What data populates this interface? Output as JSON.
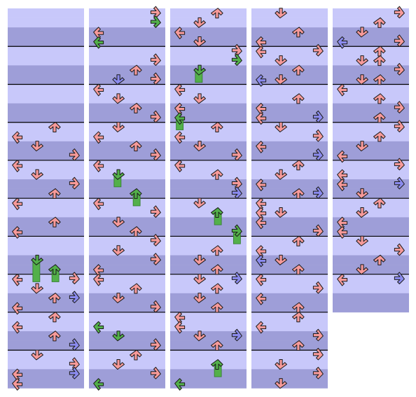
{
  "chart_title": "",
  "lane_order": [
    "left",
    "down",
    "up",
    "right"
  ],
  "colors": {
    "lane_light": "#c8c8fa",
    "lane_dark": "#9e9ed8",
    "measure_line": "#000000",
    "arrow_red": "#f79a9a",
    "arrow_blue": "#8b8bee",
    "freeze_green": "#53b04a",
    "outline": "#1a1a1a"
  },
  "icons": {
    "left": "left-arrow-icon",
    "down": "down-arrow-icon",
    "up": "up-arrow-icon",
    "right": "right-arrow-icon",
    "hold": "freeze-arrow-icon"
  },
  "columns": [
    {
      "name": "column-1",
      "rows": 40,
      "notes": [
        {
          "row": 12,
          "lane": "up",
          "color": "red"
        },
        {
          "row": 13,
          "lane": "left",
          "color": "red"
        },
        {
          "row": 14,
          "lane": "down",
          "color": "red"
        },
        {
          "row": 15,
          "lane": "right",
          "color": "red"
        },
        {
          "row": 16,
          "lane": "left",
          "color": "red"
        },
        {
          "row": 17,
          "lane": "down",
          "color": "red"
        },
        {
          "row": 18,
          "lane": "right",
          "color": "red"
        },
        {
          "row": 19,
          "lane": "up",
          "color": "red"
        },
        {
          "row": 20,
          "lane": "left",
          "color": "red"
        },
        {
          "row": 22,
          "lane": "up",
          "color": "red"
        },
        {
          "row": 23,
          "lane": "left",
          "color": "red"
        },
        {
          "row": 26,
          "lane": "down",
          "color": "green",
          "hold_to": 28
        },
        {
          "row": 27,
          "lane": "up",
          "color": "green",
          "hold_to": 28
        },
        {
          "row": 28,
          "lane": "left",
          "color": "red"
        },
        {
          "row": 28,
          "lane": "right",
          "color": "red"
        },
        {
          "row": 29,
          "lane": "down",
          "color": "red"
        },
        {
          "row": 30,
          "lane": "up",
          "color": "red"
        },
        {
          "row": 30,
          "lane": "right",
          "color": "blue"
        },
        {
          "row": 31,
          "lane": "left",
          "color": "red"
        },
        {
          "row": 32,
          "lane": "up",
          "color": "red"
        },
        {
          "row": 33,
          "lane": "left",
          "color": "red"
        },
        {
          "row": 34,
          "lane": "up",
          "color": "red"
        },
        {
          "row": 35,
          "lane": "right",
          "color": "blue"
        },
        {
          "row": 36,
          "lane": "down",
          "color": "red"
        },
        {
          "row": 37,
          "lane": "right",
          "color": "red"
        },
        {
          "row": 38,
          "lane": "left",
          "color": "red"
        },
        {
          "row": 38,
          "lane": "right",
          "color": "blue"
        },
        {
          "row": 39,
          "lane": "left",
          "color": "red"
        }
      ]
    },
    {
      "name": "column-2",
      "rows": 40,
      "notes": [
        {
          "row": 0,
          "lane": "right",
          "color": "red"
        },
        {
          "row": 1,
          "lane": "right",
          "color": "green"
        },
        {
          "row": 2,
          "lane": "left",
          "color": "red"
        },
        {
          "row": 3,
          "lane": "left",
          "color": "green"
        },
        {
          "row": 5,
          "lane": "right",
          "color": "red"
        },
        {
          "row": 6,
          "lane": "up",
          "color": "red"
        },
        {
          "row": 7,
          "lane": "down",
          "color": "blue"
        },
        {
          "row": 7,
          "lane": "right",
          "color": "red"
        },
        {
          "row": 8,
          "lane": "left",
          "color": "red"
        },
        {
          "row": 9,
          "lane": "down",
          "color": "red"
        },
        {
          "row": 10,
          "lane": "up",
          "color": "red"
        },
        {
          "row": 11,
          "lane": "right",
          "color": "red"
        },
        {
          "row": 12,
          "lane": "down",
          "color": "red"
        },
        {
          "row": 13,
          "lane": "left",
          "color": "red"
        },
        {
          "row": 14,
          "lane": "up",
          "color": "red"
        },
        {
          "row": 15,
          "lane": "right",
          "color": "red"
        },
        {
          "row": 16,
          "lane": "left",
          "color": "red"
        },
        {
          "row": 17,
          "lane": "down",
          "color": "green",
          "hold_to": 18
        },
        {
          "row": 19,
          "lane": "up",
          "color": "green",
          "hold_to": 20
        },
        {
          "row": 20,
          "lane": "left",
          "color": "red"
        },
        {
          "row": 21,
          "lane": "right",
          "color": "red"
        },
        {
          "row": 22,
          "lane": "down",
          "color": "red"
        },
        {
          "row": 23,
          "lane": "up",
          "color": "red"
        },
        {
          "row": 24,
          "lane": "right",
          "color": "red"
        },
        {
          "row": 25,
          "lane": "down",
          "color": "red"
        },
        {
          "row": 26,
          "lane": "right",
          "color": "red"
        },
        {
          "row": 27,
          "lane": "left",
          "color": "red"
        },
        {
          "row": 28,
          "lane": "left",
          "color": "red"
        },
        {
          "row": 29,
          "lane": "up",
          "color": "red"
        },
        {
          "row": 30,
          "lane": "down",
          "color": "red"
        },
        {
          "row": 31,
          "lane": "right",
          "color": "red"
        },
        {
          "row": 33,
          "lane": "left",
          "color": "green"
        },
        {
          "row": 34,
          "lane": "down",
          "color": "green"
        },
        {
          "row": 35,
          "lane": "right",
          "color": "red"
        },
        {
          "row": 36,
          "lane": "up",
          "color": "red"
        },
        {
          "row": 37,
          "lane": "down",
          "color": "red"
        },
        {
          "row": 38,
          "lane": "right",
          "color": "red"
        },
        {
          "row": 39,
          "lane": "left",
          "color": "green"
        }
      ]
    },
    {
      "name": "column-3",
      "rows": 40,
      "notes": [
        {
          "row": 0,
          "lane": "up",
          "color": "red"
        },
        {
          "row": 1,
          "lane": "down",
          "color": "red"
        },
        {
          "row": 2,
          "lane": "left",
          "color": "red"
        },
        {
          "row": 3,
          "lane": "down",
          "color": "red"
        },
        {
          "row": 4,
          "lane": "right",
          "color": "red"
        },
        {
          "row": 5,
          "lane": "right",
          "color": "green"
        },
        {
          "row": 6,
          "lane": "down",
          "color": "green",
          "hold_to": 7
        },
        {
          "row": 8,
          "lane": "left",
          "color": "red"
        },
        {
          "row": 9,
          "lane": "down",
          "color": "red"
        },
        {
          "row": 10,
          "lane": "left",
          "color": "red"
        },
        {
          "row": 11,
          "lane": "left",
          "color": "green",
          "hold_to": 12
        },
        {
          "row": 12,
          "lane": "up",
          "color": "red"
        },
        {
          "row": 13,
          "lane": "left",
          "color": "red"
        },
        {
          "row": 14,
          "lane": "down",
          "color": "red"
        },
        {
          "row": 15,
          "lane": "right",
          "color": "red"
        },
        {
          "row": 16,
          "lane": "left",
          "color": "red"
        },
        {
          "row": 17,
          "lane": "up",
          "color": "red"
        },
        {
          "row": 18,
          "lane": "right",
          "color": "red"
        },
        {
          "row": 19,
          "lane": "right",
          "color": "blue"
        },
        {
          "row": 20,
          "lane": "down",
          "color": "red"
        },
        {
          "row": 21,
          "lane": "up",
          "color": "green",
          "hold_to": 22
        },
        {
          "row": 23,
          "lane": "right",
          "color": "green",
          "hold_to": 24
        },
        {
          "row": 25,
          "lane": "up",
          "color": "red"
        },
        {
          "row": 26,
          "lane": "down",
          "color": "red"
        },
        {
          "row": 27,
          "lane": "up",
          "color": "red"
        },
        {
          "row": 28,
          "lane": "down",
          "color": "red"
        },
        {
          "row": 28,
          "lane": "right",
          "color": "blue"
        },
        {
          "row": 29,
          "lane": "up",
          "color": "red"
        },
        {
          "row": 30,
          "lane": "down",
          "color": "red"
        },
        {
          "row": 31,
          "lane": "up",
          "color": "red"
        },
        {
          "row": 32,
          "lane": "left",
          "color": "red"
        },
        {
          "row": 33,
          "lane": "left",
          "color": "red"
        },
        {
          "row": 34,
          "lane": "down",
          "color": "red"
        },
        {
          "row": 34,
          "lane": "right",
          "color": "blue"
        },
        {
          "row": 35,
          "lane": "up",
          "color": "red"
        },
        {
          "row": 37,
          "lane": "up",
          "color": "green",
          "hold_to": 38
        },
        {
          "row": 39,
          "lane": "left",
          "color": "green"
        }
      ]
    },
    {
      "name": "column-4",
      "rows": 40,
      "notes": [
        {
          "row": 0,
          "lane": "down",
          "color": "red"
        },
        {
          "row": 2,
          "lane": "up",
          "color": "red"
        },
        {
          "row": 3,
          "lane": "left",
          "color": "red"
        },
        {
          "row": 4,
          "lane": "left",
          "color": "red"
        },
        {
          "row": 4,
          "lane": "right",
          "color": "red"
        },
        {
          "row": 5,
          "lane": "down",
          "color": "red"
        },
        {
          "row": 6,
          "lane": "up",
          "color": "red"
        },
        {
          "row": 7,
          "lane": "left",
          "color": "blue"
        },
        {
          "row": 7,
          "lane": "down",
          "color": "red"
        },
        {
          "row": 9,
          "lane": "up",
          "color": "red"
        },
        {
          "row": 10,
          "lane": "left",
          "color": "red"
        },
        {
          "row": 11,
          "lane": "right",
          "color": "blue"
        },
        {
          "row": 11,
          "lane": "left",
          "color": "red"
        },
        {
          "row": 12,
          "lane": "down",
          "color": "red"
        },
        {
          "row": 13,
          "lane": "right",
          "color": "red"
        },
        {
          "row": 14,
          "lane": "left",
          "color": "red"
        },
        {
          "row": 15,
          "lane": "right",
          "color": "blue"
        },
        {
          "row": 16,
          "lane": "up",
          "color": "red"
        },
        {
          "row": 17,
          "lane": "down",
          "color": "red"
        },
        {
          "row": 18,
          "lane": "left",
          "color": "red"
        },
        {
          "row": 19,
          "lane": "right",
          "color": "blue"
        },
        {
          "row": 19,
          "lane": "up",
          "color": "red"
        },
        {
          "row": 20,
          "lane": "left",
          "color": "red"
        },
        {
          "row": 21,
          "lane": "left",
          "color": "red"
        },
        {
          "row": 21,
          "lane": "down",
          "color": "red"
        },
        {
          "row": 22,
          "lane": "left",
          "color": "red"
        },
        {
          "row": 23,
          "lane": "right",
          "color": "red"
        },
        {
          "row": 24,
          "lane": "up",
          "color": "red"
        },
        {
          "row": 25,
          "lane": "left",
          "color": "red"
        },
        {
          "row": 26,
          "lane": "left",
          "color": "blue"
        },
        {
          "row": 26,
          "lane": "down",
          "color": "red"
        },
        {
          "row": 27,
          "lane": "up",
          "color": "red"
        },
        {
          "row": 28,
          "lane": "left",
          "color": "red"
        },
        {
          "row": 29,
          "lane": "right",
          "color": "red"
        },
        {
          "row": 30,
          "lane": "left",
          "color": "red"
        },
        {
          "row": 31,
          "lane": "up",
          "color": "red"
        },
        {
          "row": 32,
          "lane": "up",
          "color": "red"
        },
        {
          "row": 33,
          "lane": "left",
          "color": "red"
        },
        {
          "row": 34,
          "lane": "right",
          "color": "red"
        },
        {
          "row": 35,
          "lane": "up",
          "color": "red"
        },
        {
          "row": 36,
          "lane": "right",
          "color": "red"
        },
        {
          "row": 37,
          "lane": "down",
          "color": "red"
        },
        {
          "row": 38,
          "lane": "right",
          "color": "red"
        },
        {
          "row": 39,
          "lane": "down",
          "color": "red"
        }
      ]
    },
    {
      "name": "column-5",
      "rows": 32,
      "notes": [
        {
          "row": 0,
          "lane": "right",
          "color": "red"
        },
        {
          "row": 1,
          "lane": "up",
          "color": "red"
        },
        {
          "row": 2,
          "lane": "down",
          "color": "red"
        },
        {
          "row": 3,
          "lane": "left",
          "color": "blue"
        },
        {
          "row": 3,
          "lane": "right",
          "color": "red"
        },
        {
          "row": 4,
          "lane": "up",
          "color": "red"
        },
        {
          "row": 5,
          "lane": "down",
          "color": "red"
        },
        {
          "row": 5,
          "lane": "up",
          "color": "red"
        },
        {
          "row": 6,
          "lane": "right",
          "color": "red"
        },
        {
          "row": 7,
          "lane": "down",
          "color": "red"
        },
        {
          "row": 7,
          "lane": "up",
          "color": "red"
        },
        {
          "row": 8,
          "lane": "left",
          "color": "red"
        },
        {
          "row": 9,
          "lane": "up",
          "color": "red"
        },
        {
          "row": 10,
          "lane": "right",
          "color": "red"
        },
        {
          "row": 11,
          "lane": "up",
          "color": "red"
        },
        {
          "row": 12,
          "lane": "right",
          "color": "red"
        },
        {
          "row": 13,
          "lane": "up",
          "color": "red"
        },
        {
          "row": 14,
          "lane": "down",
          "color": "red"
        },
        {
          "row": 15,
          "lane": "left",
          "color": "red"
        },
        {
          "row": 16,
          "lane": "right",
          "color": "red"
        },
        {
          "row": 17,
          "lane": "left",
          "color": "red"
        },
        {
          "row": 18,
          "lane": "right",
          "color": "blue"
        },
        {
          "row": 18,
          "lane": "left",
          "color": "red"
        },
        {
          "row": 19,
          "lane": "down",
          "color": "red"
        },
        {
          "row": 20,
          "lane": "up",
          "color": "red"
        },
        {
          "row": 21,
          "lane": "down",
          "color": "red"
        },
        {
          "row": 22,
          "lane": "left",
          "color": "red"
        },
        {
          "row": 23,
          "lane": "left",
          "color": "red"
        },
        {
          "row": 24,
          "lane": "down",
          "color": "red"
        },
        {
          "row": 25,
          "lane": "right",
          "color": "red"
        },
        {
          "row": 26,
          "lane": "up",
          "color": "red"
        },
        {
          "row": 27,
          "lane": "down",
          "color": "red"
        },
        {
          "row": 28,
          "lane": "right",
          "color": "blue"
        },
        {
          "row": 28,
          "lane": "left",
          "color": "red"
        }
      ]
    }
  ]
}
